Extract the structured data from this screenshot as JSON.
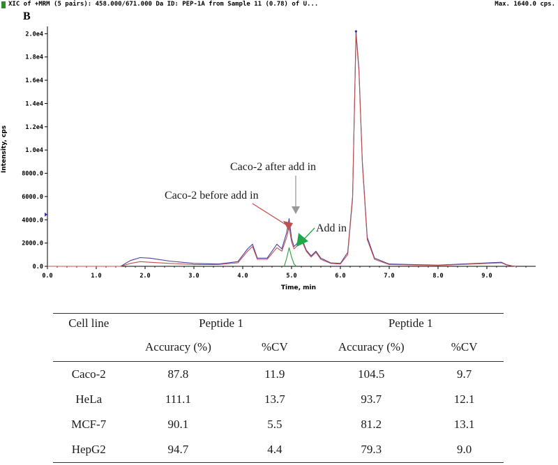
{
  "header": {
    "title": "XIC of +MRM (5 pairs): 458.000/671.000 Da ID: PEP-1A from Sample 11 (0.78) of U...",
    "max_label": "Max. 1640.0 cps.",
    "marker_color": "#2e8b2e"
  },
  "panel_letter": "B",
  "chart_data": {
    "type": "line",
    "xlabel": "Time, min",
    "ylabel": "Intensity, cps",
    "xlim": [
      0,
      10
    ],
    "ylim": [
      0,
      20500
    ],
    "x_ticks": [
      0,
      1,
      2,
      3,
      4,
      5,
      6,
      7,
      8,
      9
    ],
    "x_tick_labels": [
      "0.0",
      "1.0",
      "2.0",
      "3.0",
      "4.0",
      "5.0",
      "6.0",
      "7.0",
      "8.0",
      "9.0"
    ],
    "y_ticks": [
      0,
      2000,
      4000,
      6000,
      8000,
      10000,
      12000,
      14000,
      16000,
      18000,
      20000
    ],
    "y_tick_labels": [
      "0.0",
      "2000.0",
      "4000.0",
      "6000.0",
      "8000.0",
      "1.0e4",
      "1.2e4",
      "1.4e4",
      "1.6e4",
      "1.8e4",
      "2.0e4"
    ],
    "grid": false,
    "series": [
      {
        "color": "#4a3fa0",
        "x": [
          0,
          1.5,
          1.7,
          1.9,
          2.1,
          2.5,
          3.0,
          3.5,
          3.9,
          4.1,
          4.2,
          4.3,
          4.5,
          4.7,
          4.8,
          4.9,
          4.95,
          5.0,
          5.05,
          5.1,
          5.2,
          5.3,
          5.4,
          5.5,
          5.6,
          5.8,
          6.0,
          6.15,
          6.25,
          6.32,
          6.38,
          6.45,
          6.55,
          6.7,
          7.0,
          8.0,
          9.3,
          9.4,
          9.5,
          9.6
        ],
        "y": [
          0,
          0,
          500,
          750,
          700,
          450,
          250,
          200,
          400,
          1500,
          1900,
          700,
          700,
          1900,
          1500,
          2900,
          4100,
          2400,
          1700,
          1900,
          2500,
          1400,
          900,
          1300,
          700,
          300,
          250,
          1200,
          6000,
          20200,
          17000,
          9000,
          2500,
          700,
          200,
          100,
          350,
          150,
          50,
          0
        ]
      },
      {
        "color": "#c0504d",
        "x": [
          0,
          1.5,
          1.7,
          1.9,
          2.1,
          2.5,
          3.0,
          3.5,
          3.9,
          4.1,
          4.2,
          4.3,
          4.5,
          4.7,
          4.8,
          4.9,
          4.95,
          5.0,
          5.05,
          5.1,
          5.2,
          5.3,
          5.4,
          5.5,
          5.6,
          5.8,
          6.0,
          6.15,
          6.25,
          6.32,
          6.38,
          6.45,
          6.55,
          6.7,
          7.0,
          8.0,
          9.3,
          9.4,
          9.5,
          9.6
        ],
        "y": [
          0,
          0,
          250,
          400,
          350,
          250,
          150,
          150,
          300,
          1300,
          1700,
          600,
          600,
          1600,
          1300,
          2500,
          3400,
          2100,
          1500,
          1700,
          2300,
          1300,
          800,
          1200,
          600,
          250,
          200,
          1000,
          5800,
          19900,
          16800,
          8800,
          2300,
          600,
          150,
          80,
          300,
          120,
          40,
          0
        ]
      },
      {
        "color": "#2e9e3e",
        "x": [
          4.85,
          4.9,
          4.95,
          5.0,
          5.05,
          5.1
        ],
        "y": [
          0,
          700,
          1600,
          800,
          200,
          0
        ]
      }
    ],
    "annotations": [
      {
        "text": "Caco-2 after add in",
        "arrow_color": "#999999"
      },
      {
        "text": "Caco-2 before add in",
        "arrow_color": "#c0504d"
      },
      {
        "text": "Add in",
        "arrow_color": "#1fa84a"
      }
    ]
  },
  "table": {
    "corner_header": "Cell line",
    "groups": [
      "Peptide 1",
      "Peptide 1"
    ],
    "subheaders": [
      "Accuracy (%)",
      "%CV",
      "Accuracy (%)",
      "%CV"
    ],
    "rows": [
      {
        "cell_line": "Caco-2",
        "values": [
          "87.8",
          "11.9",
          "104.5",
          "9.7"
        ]
      },
      {
        "cell_line": "HeLa",
        "values": [
          "111.1",
          "13.7",
          "93.7",
          "12.1"
        ]
      },
      {
        "cell_line": "MCF-7",
        "values": [
          "90.1",
          "5.5",
          "81.2",
          "13.1"
        ]
      },
      {
        "cell_line": "HepG2",
        "values": [
          "94.7",
          "4.4",
          "79.3",
          "9.0"
        ]
      }
    ]
  }
}
